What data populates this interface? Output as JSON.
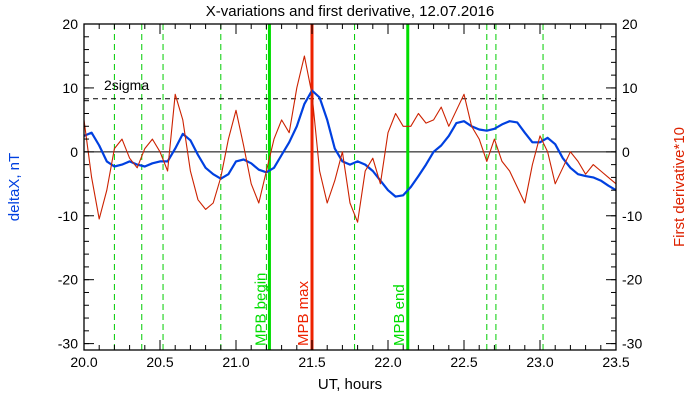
{
  "chart_data": {
    "type": "line",
    "title": "X-variations and first derivative, 12.07.2016",
    "xlabel": "UT, hours",
    "ylabel_left": "deltaX, nT",
    "ylabel_right": "First derivative*10",
    "xlim": [
      20.0,
      23.5
    ],
    "ylim": [
      -31,
      20
    ],
    "x_ticks": [
      "20.0",
      "20.5",
      "21.0",
      "21.5",
      "22.0",
      "22.5",
      "23.0",
      "23.5"
    ],
    "y_ticks_left": [
      "20",
      "10",
      "0",
      "-10",
      "-20",
      "-30"
    ],
    "y_ticks_right": [
      "20",
      "10",
      "0",
      "-10",
      "-20",
      "-30"
    ],
    "grid": false,
    "zero_line": 0,
    "sigma_line": {
      "label": "2sigma",
      "y": 8.3
    },
    "colors": {
      "deltaX": "#0040e0",
      "derivative": "#cc2200",
      "mpb_edges": "#00dd00",
      "mpb_max": "#ee2200",
      "dashed_markers": "#00cc00",
      "axes": "#000000"
    },
    "dashed_markers_x": [
      20.2,
      20.38,
      20.52,
      20.9,
      21.2,
      21.78,
      22.65,
      22.71,
      23.02
    ],
    "mpb_lines": [
      {
        "label": "MPB begin",
        "x": 21.22,
        "color": "#00dd00"
      },
      {
        "label": "MPB max",
        "x": 21.5,
        "color": "#ee2200"
      },
      {
        "label": "MPB end",
        "x": 22.13,
        "color": "#00dd00"
      }
    ],
    "series": [
      {
        "name": "deltaX",
        "color": "#0040e0",
        "x": [
          20.0,
          20.05,
          20.1,
          20.15,
          20.2,
          20.25,
          20.3,
          20.35,
          20.4,
          20.45,
          20.5,
          20.55,
          20.6,
          20.65,
          20.7,
          20.75,
          20.8,
          20.85,
          20.9,
          20.95,
          21.0,
          21.05,
          21.1,
          21.15,
          21.2,
          21.25,
          21.3,
          21.35,
          21.4,
          21.45,
          21.5,
          21.55,
          21.6,
          21.65,
          21.7,
          21.75,
          21.8,
          21.85,
          21.9,
          21.95,
          22.0,
          22.05,
          22.1,
          22.15,
          22.2,
          22.25,
          22.3,
          22.35,
          22.4,
          22.45,
          22.5,
          22.55,
          22.6,
          22.65,
          22.7,
          22.75,
          22.8,
          22.85,
          22.9,
          22.95,
          23.0,
          23.05,
          23.1,
          23.15,
          23.2,
          23.25,
          23.3,
          23.35,
          23.4,
          23.45,
          23.5
        ],
        "values": [
          2.5,
          3.0,
          1.0,
          -1.5,
          -2.3,
          -2.0,
          -1.5,
          -2.0,
          -2.3,
          -1.8,
          -1.5,
          -1.5,
          0.5,
          2.8,
          1.8,
          -0.5,
          -2.5,
          -3.5,
          -4.2,
          -3.5,
          -1.5,
          -1.2,
          -1.8,
          -2.8,
          -3.2,
          -2.5,
          -0.5,
          1.5,
          4.0,
          7.5,
          9.6,
          8.5,
          5.0,
          0.5,
          -1.5,
          -2.0,
          -1.5,
          -2.0,
          -3.0,
          -4.5,
          -6.0,
          -7.0,
          -6.8,
          -5.5,
          -3.8,
          -2.0,
          0.0,
          1.0,
          2.5,
          4.5,
          4.8,
          4.0,
          3.5,
          3.3,
          3.6,
          4.3,
          4.8,
          4.6,
          3.0,
          1.5,
          1.5,
          2.2,
          1.2,
          -1.0,
          -2.5,
          -3.5,
          -3.8,
          -4.0,
          -4.5,
          -5.3,
          -6.0
        ]
      },
      {
        "name": "First derivative*10",
        "color": "#cc2200",
        "x": [
          20.0,
          20.05,
          20.1,
          20.15,
          20.2,
          20.25,
          20.3,
          20.35,
          20.4,
          20.45,
          20.5,
          20.55,
          20.6,
          20.65,
          20.7,
          20.75,
          20.8,
          20.85,
          20.9,
          20.95,
          21.0,
          21.05,
          21.1,
          21.15,
          21.2,
          21.25,
          21.3,
          21.35,
          21.4,
          21.45,
          21.5,
          21.55,
          21.6,
          21.65,
          21.7,
          21.75,
          21.8,
          21.85,
          21.9,
          21.95,
          22.0,
          22.05,
          22.1,
          22.15,
          22.2,
          22.25,
          22.3,
          22.35,
          22.4,
          22.45,
          22.5,
          22.55,
          22.6,
          22.65,
          22.7,
          22.75,
          22.8,
          22.85,
          22.9,
          22.95,
          23.0,
          23.05,
          23.1,
          23.15,
          23.2,
          23.25,
          23.3,
          23.35,
          23.4,
          23.45,
          23.5
        ],
        "values": [
          5.0,
          -4.0,
          -10.5,
          -6.0,
          0.5,
          2.0,
          -1.0,
          -2.5,
          0.5,
          2.0,
          0.0,
          -3.0,
          9.0,
          5.0,
          -3.0,
          -7.5,
          -9.0,
          -8.0,
          -4.0,
          2.0,
          6.5,
          1.0,
          -5.0,
          -8.0,
          -3.0,
          2.0,
          5.0,
          3.0,
          10.0,
          15.0,
          9.0,
          -3.0,
          -8.0,
          -4.5,
          0.0,
          -8.0,
          -11.0,
          -3.0,
          -1.0,
          -5.0,
          3.0,
          6.0,
          4.0,
          4.0,
          6.0,
          4.5,
          5.0,
          7.0,
          4.0,
          6.5,
          9.0,
          4.0,
          2.0,
          -1.5,
          2.0,
          -1.5,
          -3.0,
          -5.5,
          -8.0,
          -2.0,
          2.5,
          0.0,
          -5.0,
          -2.5,
          0.0,
          -1.5,
          -3.5,
          -2.0,
          -3.0,
          -4.0,
          -5.0
        ]
      }
    ]
  }
}
